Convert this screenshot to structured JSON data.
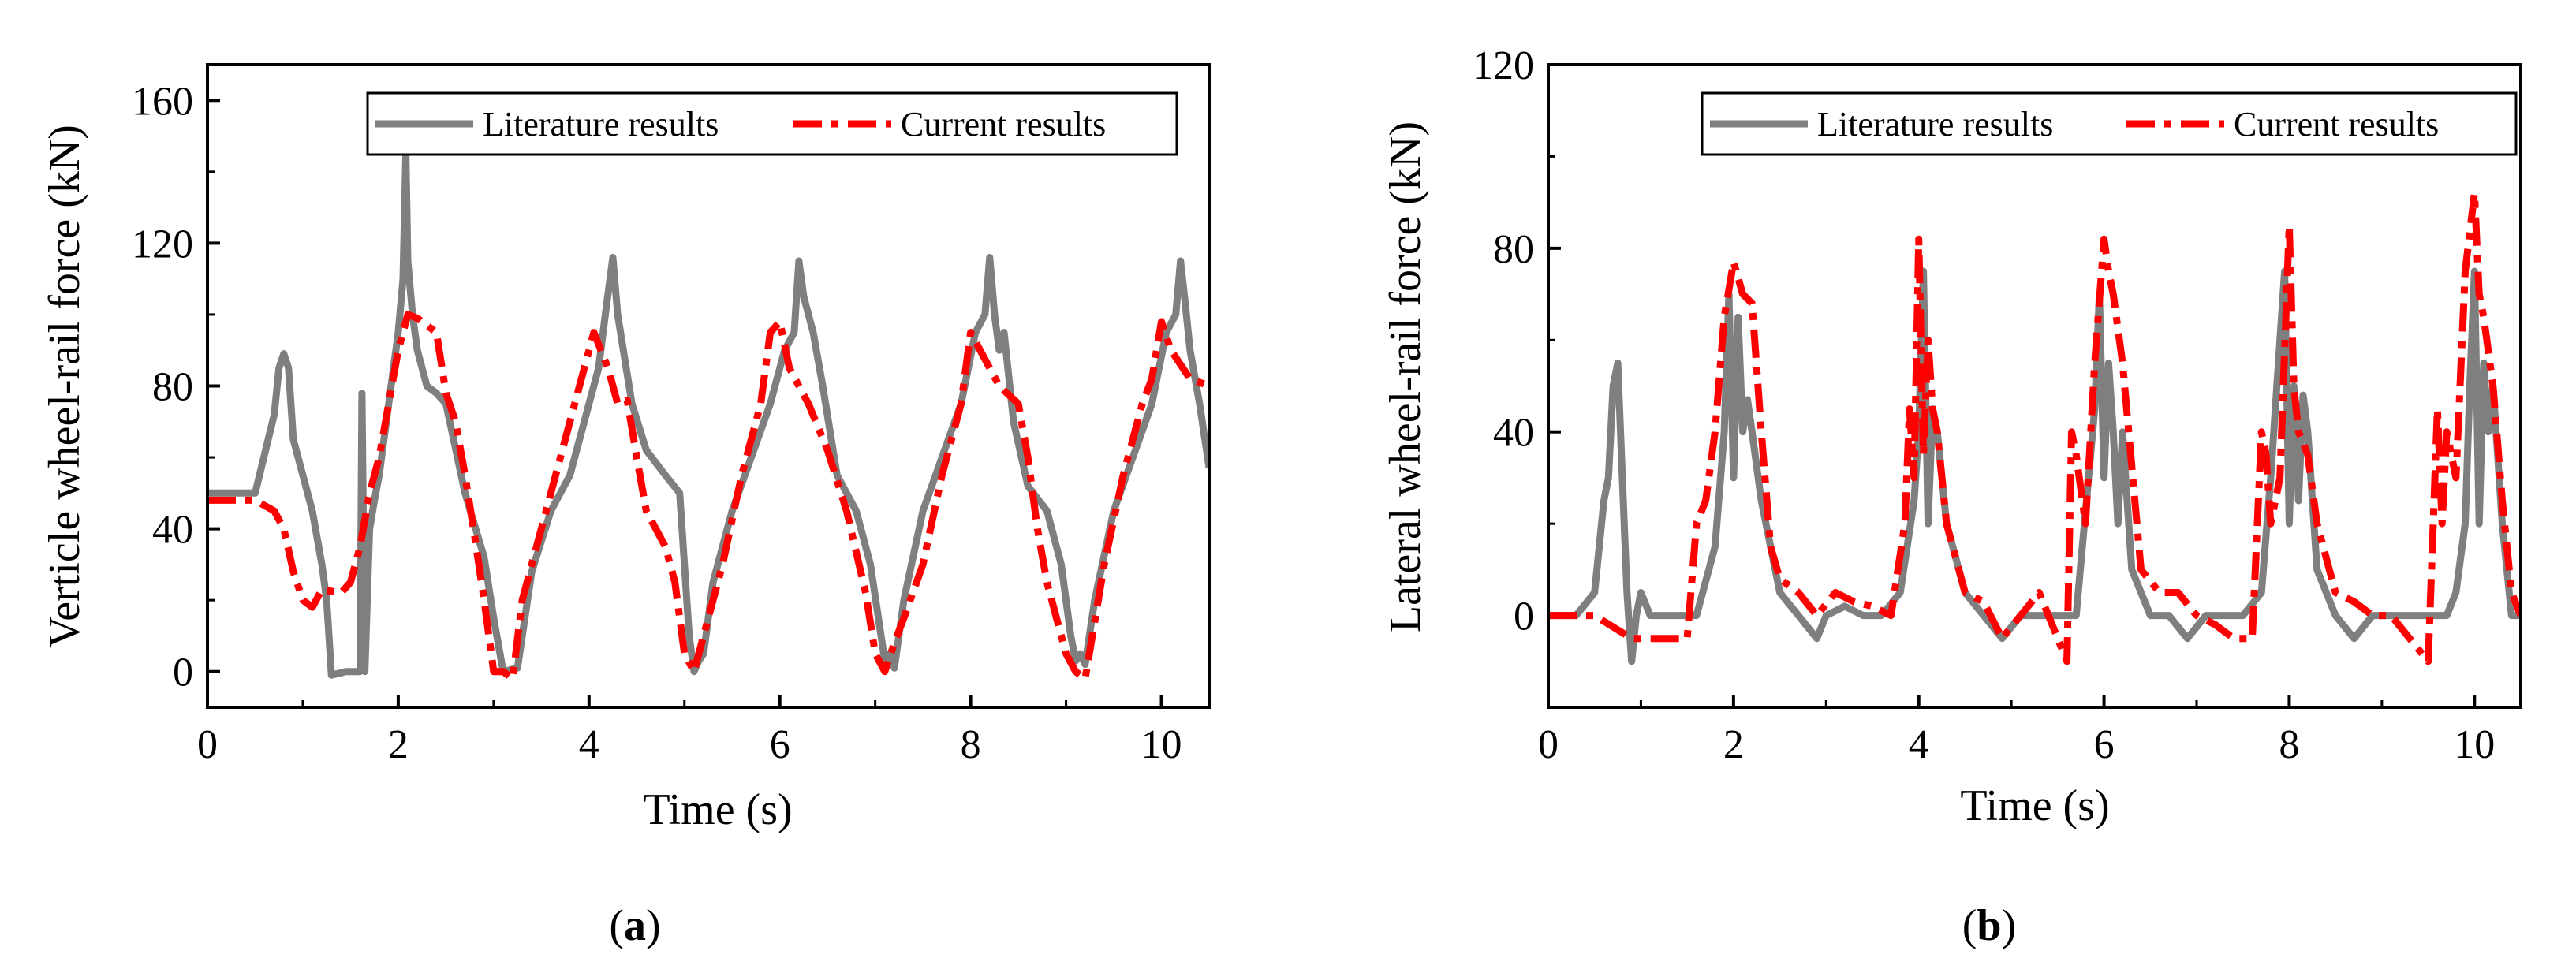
{
  "chart_data": [
    {
      "type": "line",
      "panel_label": "a",
      "title": "",
      "xlabel": "Time (s)",
      "ylabel": "Verticle wheel-rail force (kN)",
      "xlim": [
        0,
        10.5
      ],
      "ylim": [
        -10,
        170
      ],
      "xticks": [
        0,
        2,
        4,
        6,
        8,
        10
      ],
      "yticks": [
        0,
        40,
        80,
        120,
        160
      ],
      "legend_position": "top-right",
      "series": [
        {
          "name": "Literature results",
          "color": "#7f7f7f",
          "style": "solid",
          "x": [
            0,
            0.5,
            0.7,
            0.75,
            0.8,
            0.85,
            0.9,
            1.1,
            1.2,
            1.25,
            1.3,
            1.45,
            1.6,
            1.62,
            1.65,
            1.7,
            1.75,
            1.8,
            1.85,
            1.9,
            1.95,
            2.0,
            2.05,
            2.08,
            2.1,
            2.15,
            2.2,
            2.3,
            2.4,
            2.5,
            2.7,
            2.9,
            3.0,
            3.1,
            3.25,
            3.4,
            3.6,
            3.8,
            4.0,
            4.1,
            4.18,
            4.25,
            4.3,
            4.45,
            4.6,
            4.8,
            4.95,
            5.05,
            5.1,
            5.15,
            5.2,
            5.3,
            5.5,
            5.7,
            5.9,
            6.05,
            6.15,
            6.2,
            6.25,
            6.3,
            6.35,
            6.45,
            6.6,
            6.8,
            6.95,
            7.05,
            7.1,
            7.15,
            7.2,
            7.3,
            7.5,
            7.7,
            7.9,
            8.05,
            8.15,
            8.2,
            8.25,
            8.3,
            8.35,
            8.45,
            8.6,
            8.8,
            8.95,
            9.05,
            9.1,
            9.15,
            9.2,
            9.3,
            9.5,
            9.7,
            9.9,
            10.05,
            10.15,
            10.2,
            10.25,
            10.3,
            10.4,
            10.5
          ],
          "y": [
            50,
            50,
            72,
            85,
            89,
            85,
            65,
            45,
            30,
            20,
            -1,
            0,
            0,
            78,
            0,
            40,
            48,
            55,
            65,
            75,
            85,
            95,
            110,
            145,
            115,
            100,
            90,
            80,
            78,
            75,
            50,
            32,
            15,
            0,
            1,
            28,
            45,
            55,
            75,
            85,
            102,
            116,
            100,
            75,
            62,
            55,
            50,
            10,
            0,
            3,
            5,
            25,
            45,
            60,
            75,
            90,
            95,
            115,
            105,
            100,
            95,
            80,
            55,
            45,
            30,
            12,
            3,
            5,
            1,
            20,
            45,
            60,
            75,
            95,
            100,
            116,
            100,
            90,
            95,
            70,
            52,
            45,
            30,
            10,
            3,
            5,
            2,
            20,
            45,
            60,
            75,
            95,
            100,
            115,
            103,
            90,
            75,
            57
          ]
        },
        {
          "name": "Current results",
          "color": "#ff0000",
          "style": "dashdot",
          "x": [
            0,
            0.5,
            0.7,
            0.8,
            0.9,
            1.0,
            1.1,
            1.2,
            1.4,
            1.5,
            1.6,
            1.7,
            1.8,
            1.9,
            2.0,
            2.1,
            2.2,
            2.3,
            2.4,
            2.5,
            2.6,
            2.7,
            2.8,
            2.9,
            3.0,
            3.1,
            3.2,
            3.3,
            3.5,
            3.7,
            3.9,
            4.05,
            4.2,
            4.3,
            4.4,
            4.5,
            4.6,
            4.7,
            4.8,
            4.9,
            5.0,
            5.1,
            5.2,
            5.4,
            5.6,
            5.8,
            5.9,
            6.0,
            6.1,
            6.3,
            6.5,
            6.7,
            6.9,
            7.0,
            7.1,
            7.2,
            7.3,
            7.5,
            7.7,
            7.9,
            8.0,
            8.1,
            8.3,
            8.5,
            8.6,
            8.7,
            8.8,
            8.9,
            9.0,
            9.1,
            9.2,
            9.4,
            9.6,
            9.8,
            9.9,
            10.0,
            10.1,
            10.3,
            10.5
          ],
          "y": [
            48,
            48,
            45,
            40,
            28,
            20,
            18,
            23,
            22,
            25,
            35,
            50,
            60,
            75,
            90,
            100,
            99,
            97,
            95,
            78,
            70,
            55,
            38,
            20,
            0,
            0,
            -2,
            20,
            40,
            60,
            80,
            95,
            85,
            75,
            76,
            60,
            45,
            40,
            35,
            25,
            5,
            0,
            10,
            30,
            55,
            75,
            95,
            98,
            85,
            75,
            62,
            45,
            22,
            5,
            0,
            8,
            15,
            30,
            55,
            75,
            95,
            90,
            80,
            75,
            60,
            40,
            25,
            15,
            5,
            0,
            -2,
            30,
            55,
            75,
            82,
            98,
            90,
            82,
            80
          ]
        }
      ]
    },
    {
      "type": "line",
      "panel_label": "b",
      "title": "",
      "xlabel": "Time (s)",
      "ylabel": "Lateral wheel-rail force (kN)",
      "xlim": [
        0,
        10.5
      ],
      "ylim": [
        -20,
        120
      ],
      "xticks": [
        0,
        2,
        4,
        6,
        8,
        10
      ],
      "yticks": [
        0,
        40,
        80,
        120
      ],
      "legend_position": "top-right",
      "series": [
        {
          "name": "Literature results",
          "color": "#7f7f7f",
          "style": "solid",
          "x": [
            0,
            0.3,
            0.5,
            0.6,
            0.65,
            0.7,
            0.75,
            0.8,
            0.85,
            0.9,
            0.95,
            1.0,
            1.1,
            1.2,
            1.5,
            1.6,
            1.8,
            1.9,
            1.95,
            2.0,
            2.05,
            2.1,
            2.15,
            2.2,
            2.3,
            2.5,
            2.7,
            2.9,
            3.0,
            3.2,
            3.4,
            3.6,
            3.8,
            3.95,
            4.0,
            4.05,
            4.1,
            4.15,
            4.2,
            4.3,
            4.5,
            4.7,
            4.9,
            5.1,
            5.3,
            5.5,
            5.7,
            5.9,
            5.95,
            6.0,
            6.05,
            6.1,
            6.15,
            6.2,
            6.3,
            6.5,
            6.7,
            6.9,
            7.1,
            7.3,
            7.5,
            7.7,
            7.8,
            7.9,
            7.95,
            8.0,
            8.05,
            8.1,
            8.15,
            8.2,
            8.3,
            8.5,
            8.7,
            8.9,
            9.1,
            9.3,
            9.5,
            9.7,
            9.8,
            9.9,
            9.95,
            10.0,
            10.05,
            10.1,
            10.15,
            10.2,
            10.3,
            10.4,
            10.5
          ],
          "y": [
            0,
            0,
            5,
            25,
            30,
            50,
            55,
            30,
            5,
            -10,
            0,
            5,
            0,
            0,
            0,
            0,
            15,
            40,
            70,
            30,
            65,
            40,
            47,
            40,
            25,
            5,
            0,
            -5,
            0,
            2,
            0,
            0,
            5,
            25,
            40,
            75,
            20,
            45,
            40,
            20,
            5,
            0,
            -5,
            0,
            0,
            0,
            0,
            45,
            70,
            30,
            55,
            40,
            20,
            40,
            10,
            0,
            0,
            -5,
            0,
            0,
            0,
            5,
            30,
            60,
            75,
            20,
            50,
            25,
            48,
            40,
            10,
            0,
            -5,
            0,
            0,
            0,
            0,
            0,
            5,
            20,
            50,
            75,
            20,
            55,
            40,
            50,
            20,
            0,
            0
          ]
        },
        {
          "name": "Current results",
          "color": "#ff0000",
          "style": "dashdot",
          "x": [
            0,
            0.5,
            0.9,
            1.2,
            1.5,
            1.6,
            1.7,
            1.8,
            1.9,
            2.0,
            2.1,
            2.2,
            2.3,
            2.4,
            2.5,
            2.7,
            2.9,
            3.1,
            3.3,
            3.5,
            3.7,
            3.85,
            3.9,
            3.95,
            4.0,
            4.05,
            4.1,
            4.15,
            4.2,
            4.3,
            4.5,
            4.7,
            4.9,
            5.1,
            5.3,
            5.5,
            5.6,
            5.65,
            5.7,
            5.8,
            5.9,
            6.0,
            6.05,
            6.1,
            6.2,
            6.4,
            6.6,
            6.8,
            7.0,
            7.2,
            7.4,
            7.6,
            7.7,
            7.75,
            7.8,
            7.9,
            8.0,
            8.05,
            8.1,
            8.2,
            8.3,
            8.5,
            8.7,
            8.9,
            9.1,
            9.3,
            9.5,
            9.6,
            9.65,
            9.7,
            9.8,
            9.9,
            10.0,
            10.05,
            10.1,
            10.2,
            10.3,
            10.4,
            10.5
          ],
          "y": [
            0,
            0,
            -5,
            -5,
            -5,
            20,
            25,
            40,
            65,
            77,
            70,
            68,
            40,
            15,
            8,
            5,
            0,
            5,
            3,
            2,
            0,
            20,
            45,
            30,
            82,
            35,
            60,
            45,
            40,
            20,
            5,
            3,
            -5,
            0,
            5,
            -5,
            -10,
            40,
            35,
            20,
            55,
            82,
            75,
            70,
            55,
            10,
            5,
            5,
            0,
            -2,
            -5,
            -5,
            40,
            35,
            20,
            30,
            85,
            50,
            40,
            35,
            20,
            5,
            3,
            0,
            0,
            -5,
            -10,
            45,
            20,
            40,
            30,
            75,
            92,
            70,
            65,
            50,
            25,
            5,
            0
          ]
        }
      ]
    }
  ]
}
